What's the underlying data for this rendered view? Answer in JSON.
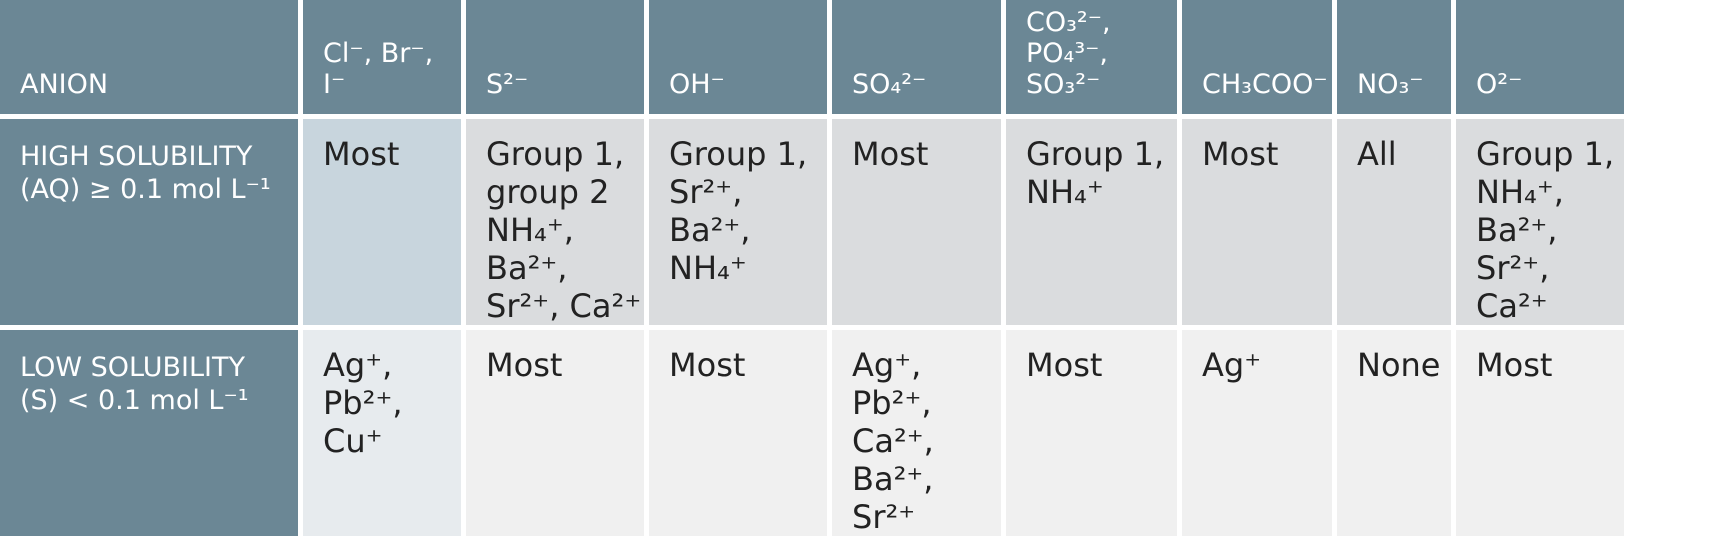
{
  "table": {
    "header": {
      "anion": "ANION",
      "cols": [
        "Cl⁻, Br⁻, I⁻",
        "S²⁻",
        "OH⁻",
        "SO₄²⁻",
        "CO₃²⁻, PO₄³⁻, SO₃²⁻",
        "CH₃COO⁻",
        "NO₃⁻",
        "O²⁻"
      ]
    },
    "rows": [
      {
        "label_line1": "HIGH SOLUBILITY",
        "label_line2": "(AQ) ≥ 0.1 mol L⁻¹",
        "cells": [
          "Most",
          "Group 1, group 2 NH₄⁺, Ba²⁺, Sr²⁺, Ca²⁺",
          "Group 1, Sr²⁺, Ba²⁺, NH₄⁺",
          "Most",
          "Group 1, NH₄⁺",
          "Most",
          "All",
          "Group 1, NH₄⁺, Ba²⁺, Sr²⁺, Ca²⁺"
        ]
      },
      {
        "label_line1": "LOW SOLUBILITY",
        "label_line2": "(S) < 0.1 mol L⁻¹",
        "cells": [
          "Ag⁺, Pb²⁺, Cu⁺",
          "Most",
          "Most",
          "Ag⁺, Pb²⁺, Ca²⁺, Ba²⁺, Sr²⁺",
          "Most",
          "Ag⁺",
          "None",
          "Most"
        ]
      }
    ]
  }
}
